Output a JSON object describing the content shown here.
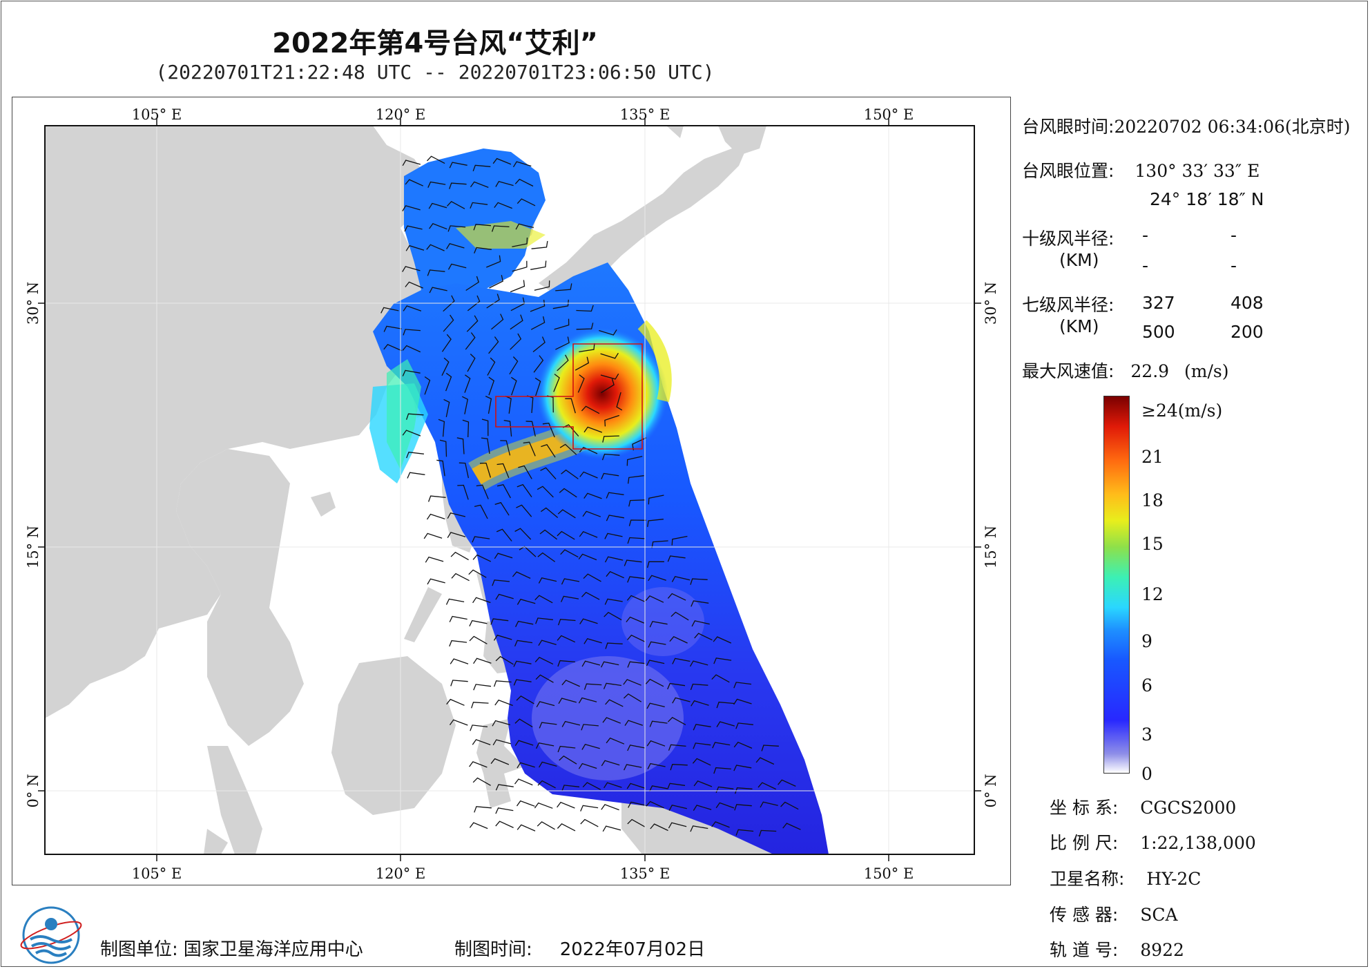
{
  "title": "2022年第4号台风“艾利”",
  "subtitle": "(20220701T21:22:48 UTC -- 20220701T23:06:50 UTC)",
  "map": {
    "lon_ticks": [
      "105° E",
      "120° E",
      "135° E",
      "150° E"
    ],
    "lat_ticks": [
      "30° N",
      "15° N",
      "0° N"
    ],
    "extent": {
      "lon_min": 98.1,
      "lon_max": 155.2,
      "lat_min": -3.9,
      "lat_max": 41.1
    },
    "land_color": "#d3d3d3",
    "ocean_color": "#ffffff"
  },
  "info": {
    "eye_time_label": "台风眼时间:",
    "eye_time_value": "20220702 06:34:06(北京时)",
    "eye_pos_label": "台风眼位置:",
    "eye_lon": "130° 33′ 33″ E",
    "eye_lat": "24° 18′ 18″ N",
    "r10_label": "十级风半径:",
    "r10_unit": "(KM)",
    "r10_values": [
      "-",
      "-",
      "-",
      "-"
    ],
    "r7_label": "七级风半径:",
    "r7_unit": "(KM)",
    "r7_values": [
      "327",
      "408",
      "500",
      "200"
    ],
    "max_wind_label": "最大风速值:",
    "max_wind_value": "22.9",
    "max_wind_unit": "(m/s)"
  },
  "colorbar": {
    "top_label": "≥24(m/s)",
    "labels": [
      "21",
      "18",
      "15",
      "12",
      "9",
      "6",
      "3",
      "0"
    ]
  },
  "meta": {
    "coord_label": "坐 标 系:",
    "coord_value": "CGCS2000",
    "scale_label": "比 例 尺:",
    "scale_value": "1:22,138,000",
    "satellite_label": "卫星名称:",
    "satellite_value": "HY-2C",
    "sensor_label": "传 感 器:",
    "sensor_value": "SCA",
    "orbit_label": "轨 道 号:",
    "orbit_value": "8922"
  },
  "footer": {
    "org_label": "制图单位:",
    "org_value": "国家卫星海洋应用中心",
    "date_label": "制图时间:",
    "date_value": "2022年07月02日"
  },
  "colors": {
    "frame": "#000000",
    "grid": "#e8e8e8",
    "track": "#d01010"
  }
}
